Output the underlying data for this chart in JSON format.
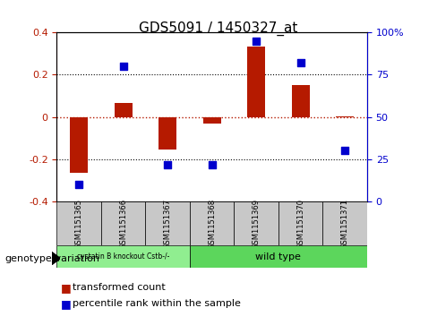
{
  "title": "GDS5091 / 1450327_at",
  "samples": [
    "GSM1151365",
    "GSM1151366",
    "GSM1151367",
    "GSM1151368",
    "GSM1151369",
    "GSM1151370",
    "GSM1151371"
  ],
  "red_values": [
    -0.265,
    0.065,
    -0.155,
    -0.03,
    0.335,
    0.15,
    0.005
  ],
  "blue_values_pct": [
    10,
    80,
    22,
    22,
    95,
    82,
    30
  ],
  "ylim_red": [
    -0.4,
    0.4
  ],
  "ylim_blue": [
    0,
    100
  ],
  "red_color": "#b51a00",
  "blue_color": "#0000cd",
  "yticks_red": [
    0.4,
    0.2,
    0.0,
    -0.2,
    -0.4
  ],
  "ytick_red_labels": [
    "0.4",
    "0.2",
    "0",
    "-0.2",
    "-0.4"
  ],
  "yticks_blue": [
    100,
    75,
    50,
    25,
    0
  ],
  "ytick_blue_labels": [
    "100%",
    "75",
    "50",
    "25",
    "0"
  ],
  "group1_label": "cystatin B knockout Cstb-/-",
  "group2_label": "wild type",
  "group1_indices": [
    0,
    1,
    2
  ],
  "group2_indices": [
    3,
    4,
    5,
    6
  ],
  "group1_color": "#90ee90",
  "group2_color": "#5cd65c",
  "gray_color": "#c8c8c8",
  "legend_red_label": "transformed count",
  "legend_blue_label": "percentile rank within the sample",
  "xlabel_label": "genotype/variation",
  "bar_width": 0.4
}
